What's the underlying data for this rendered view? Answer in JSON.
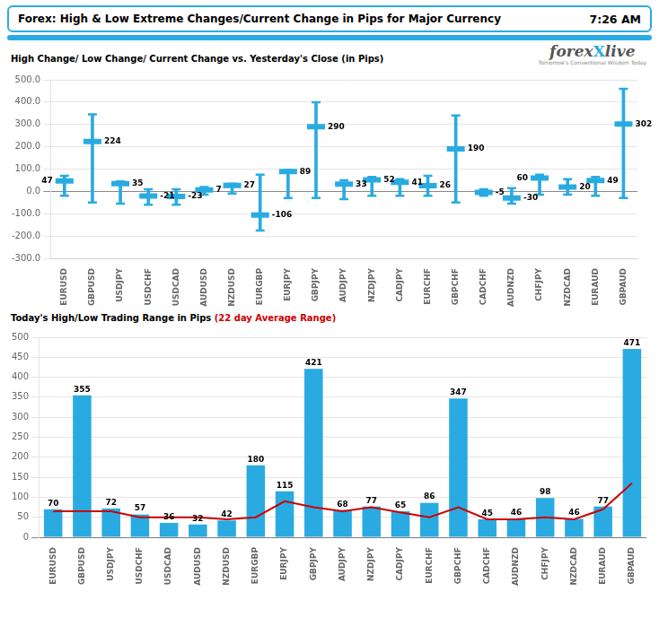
{
  "title": "Forex:  High & Low Extreme Changes/Current Change in Pips for Major Currency",
  "annotations": [
    "7:26 AM",
    "forex",
    "X",
    "live",
    "Tomorrow's Conventional Wisdom Today"
  ],
  "chart_data": [
    {
      "type": "range",
      "title": "High Change/ Low Change/ Current Change vs. Yesterday's Close (in Pips)",
      "categories": [
        "EURUSD",
        "GBPUSD",
        "USDJPY",
        "USDCHF",
        "USDCAD",
        "AUDUSD",
        "NZDUSD",
        "EURGBP",
        "EURJPY",
        "GBPJPY",
        "AUDJPY",
        "NZDJPY",
        "CADJPY",
        "EURCHF",
        "GBPCHF",
        "CADCHF",
        "AUDNZD",
        "CHFJPY",
        "NZDCAD",
        "EURAUD",
        "GBPAUD"
      ],
      "values": [
        47,
        224,
        35,
        -21,
        -23,
        7,
        27,
        -106,
        89,
        290,
        33,
        52,
        41,
        26,
        190,
        -5,
        -30,
        60,
        20,
        49,
        302
      ],
      "high": [
        70,
        345,
        45,
        10,
        10,
        20,
        35,
        75,
        95,
        400,
        50,
        65,
        55,
        70,
        340,
        10,
        15,
        75,
        55,
        65,
        460
      ],
      "low": [
        -20,
        -50,
        -55,
        -60,
        -60,
        -15,
        -10,
        -175,
        -30,
        -30,
        -35,
        -20,
        -20,
        -20,
        -50,
        -20,
        -55,
        -15,
        -15,
        -20,
        -30
      ],
      "color": "#29ABE2",
      "ylim": [
        -300,
        500
      ],
      "yticks": [
        {
          "value": -300,
          "label": "-300.0"
        },
        {
          "value": -200,
          "label": "-200.0"
        },
        {
          "value": -100,
          "label": "-100.0"
        },
        {
          "value": 0,
          "label": "0.0"
        },
        {
          "value": 100,
          "label": "100.0"
        },
        {
          "value": 200,
          "label": "200.0"
        },
        {
          "value": 300,
          "label": "300.0"
        },
        {
          "value": 400,
          "label": "400.0"
        },
        {
          "value": 500,
          "label": "500.0"
        }
      ],
      "grid": true,
      "data_labels": true
    },
    {
      "type": "bar",
      "title": "Today's High/Low Trading Range in Pips ",
      "subtitle": "(22 day Average Range)",
      "categories": [
        "EURUSD",
        "GBPUSD",
        "USDJPY",
        "USDCHF",
        "USDCAD",
        "AUDUSD",
        "NZDUSD",
        "EURGBP",
        "EURJPY",
        "GBPJPY",
        "AUDJPY",
        "NZDJPY",
        "CADJPY",
        "EURCHF",
        "GBPCHF",
        "CADCHF",
        "AUDNZD",
        "CHFJPY",
        "NZDCAD",
        "EURAUD",
        "GBPAUD"
      ],
      "series": [
        {
          "type": "bar",
          "color": "#29ABE2",
          "data_labels": true,
          "values": [
            70,
            355,
            72,
            57,
            36,
            32,
            42,
            180,
            115,
            421,
            68,
            77,
            65,
            86,
            347,
            45,
            46,
            98,
            46,
            77,
            471
          ]
        },
        {
          "type": "line",
          "color": "#CC0000",
          "values": [
            65,
            65,
            65,
            50,
            50,
            50,
            45,
            50,
            90,
            75,
            65,
            75,
            62,
            50,
            75,
            45,
            45,
            50,
            45,
            70,
            135
          ]
        }
      ],
      "ylim": [
        0,
        500
      ],
      "yticks": [
        0,
        50,
        100,
        150,
        200,
        250,
        300,
        350,
        400,
        450,
        500
      ],
      "grid": true
    }
  ]
}
